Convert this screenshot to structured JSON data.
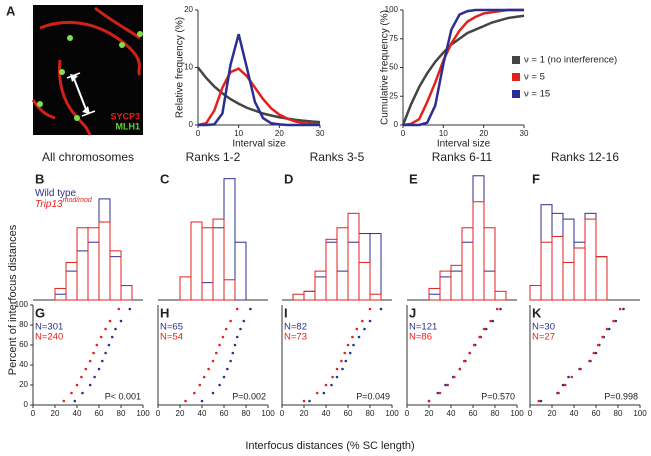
{
  "figure": {
    "image_panel": {
      "letter": "A",
      "label_red": "SYCP3",
      "label_green": "MLH1"
    },
    "y_axis_label": "Percent of interfocus distances",
    "x_axis_label": "Interfocus distances (% SC length)"
  },
  "chart_data": [
    {
      "type": "line",
      "ylabel": "Relative frequency (%)",
      "xlabel": "Interval size",
      "x": [
        0,
        2,
        4,
        6,
        8,
        10,
        12,
        14,
        16,
        18,
        20,
        22,
        24,
        26,
        28,
        30
      ],
      "xlim": [
        0,
        30
      ],
      "ylim": [
        0,
        20
      ],
      "xticks": [
        0,
        10,
        20,
        30
      ],
      "yticks": [
        0,
        10,
        20
      ],
      "series": [
        {
          "color": "#444444",
          "values": [
            10,
            8.2,
            6.7,
            5.5,
            4.5,
            3.7,
            3.0,
            2.5,
            2.0,
            1.65,
            1.35,
            1.1,
            0.9,
            0.74,
            0.6,
            0.5
          ]
        },
        {
          "color": "#e3211c",
          "values": [
            0,
            0.3,
            2.5,
            6.5,
            9.2,
            9.8,
            8.5,
            6.5,
            4.5,
            2.9,
            1.8,
            1.1,
            0.6,
            0.3,
            0.2,
            0.1
          ]
        },
        {
          "color": "#2b2f90",
          "values": [
            0,
            0,
            0.1,
            2,
            10.5,
            15.8,
            10,
            4,
            1.2,
            0.3,
            0.1,
            0,
            0,
            0,
            0,
            0
          ]
        }
      ]
    },
    {
      "type": "line",
      "ylabel": "Cumulative frequency (%)",
      "xlabel": "Interval size",
      "x": [
        0,
        2,
        4,
        6,
        8,
        10,
        12,
        14,
        16,
        18,
        20,
        22,
        24,
        26,
        28,
        30
      ],
      "xlim": [
        0,
        30
      ],
      "ylim": [
        0,
        100
      ],
      "xticks": [
        0,
        10,
        20,
        30
      ],
      "yticks": [
        0,
        25,
        50,
        75,
        100
      ],
      "series": [
        {
          "name": "ν = 1 (no interference)",
          "color": "#444444",
          "values": [
            0,
            18,
            33,
            45,
            55,
            63,
            70,
            75,
            80,
            83,
            86,
            89,
            91,
            93,
            94,
            95
          ]
        },
        {
          "name": "ν = 5",
          "color": "#e3211c",
          "values": [
            0,
            1,
            5,
            20,
            37,
            56,
            71,
            82,
            90,
            94,
            97,
            98,
            99,
            100,
            100,
            100
          ]
        },
        {
          "name": "ν = 15",
          "color": "#2b2f90",
          "values": [
            0,
            0,
            0,
            2,
            17,
            53,
            83,
            96,
            99,
            100,
            100,
            100,
            100,
            100,
            100,
            100
          ]
        }
      ]
    },
    {
      "type": "histogram",
      "letter": "B",
      "title": "All chromosomes",
      "xlim": [
        0,
        100
      ],
      "ylim": [
        0,
        45
      ],
      "bins": [
        0,
        10,
        20,
        30,
        40,
        50,
        60,
        70,
        80,
        90,
        100
      ],
      "series": [
        {
          "name": "Wild type",
          "color": "#2b2f90",
          "values": [
            0,
            0,
            2,
            10,
            17,
            20,
            35,
            15,
            5,
            0
          ]
        },
        {
          "name": "Trip13",
          "name_superscript": "mod/mod",
          "color": "#e3211c",
          "values": [
            0,
            0,
            4,
            13,
            25,
            25,
            27,
            17,
            5,
            0
          ]
        }
      ]
    },
    {
      "type": "histogram",
      "letter": "C",
      "title": "Ranks 1-2",
      "xlim": [
        0,
        100
      ],
      "ylim": [
        0,
        45
      ],
      "bins": [
        0,
        10,
        20,
        30,
        40,
        50,
        60,
        70,
        80,
        90,
        100
      ],
      "series": [
        {
          "color": "#2b2f90",
          "values": [
            0,
            0,
            0,
            0,
            6,
            25,
            42,
            20,
            0,
            0
          ]
        },
        {
          "color": "#e3211c",
          "values": [
            0,
            0,
            8,
            27,
            25,
            28,
            7,
            0,
            0,
            0
          ]
        }
      ]
    },
    {
      "type": "histogram",
      "letter": "D",
      "title": "Ranks 3-5",
      "xlim": [
        0,
        100
      ],
      "ylim": [
        0,
        45
      ],
      "bins": [
        0,
        10,
        20,
        30,
        40,
        50,
        60,
        70,
        80,
        90,
        100
      ],
      "series": [
        {
          "color": "#2b2f90",
          "values": [
            0,
            0,
            3,
            8,
            20,
            10,
            20,
            23,
            23,
            0
          ]
        },
        {
          "color": "#e3211c",
          "values": [
            0,
            2,
            3,
            10,
            21,
            25,
            30,
            13,
            2,
            0
          ]
        }
      ]
    },
    {
      "type": "histogram",
      "letter": "E",
      "title": "Ranks 6-11",
      "xlim": [
        0,
        100
      ],
      "ylim": [
        0,
        45
      ],
      "bins": [
        0,
        10,
        20,
        30,
        40,
        50,
        60,
        70,
        80,
        90,
        100
      ],
      "series": [
        {
          "color": "#2b2f90",
          "values": [
            0,
            0,
            2,
            8,
            10,
            20,
            43,
            10,
            0,
            0
          ]
        },
        {
          "color": "#e3211c",
          "values": [
            0,
            0,
            4,
            10,
            12,
            25,
            34,
            25,
            3,
            0
          ]
        }
      ]
    },
    {
      "type": "histogram",
      "letter": "F",
      "title": "Ranks 12-16",
      "xlim": [
        0,
        100
      ],
      "ylim": [
        0,
        45
      ],
      "bins": [
        0,
        10,
        20,
        30,
        40,
        50,
        60,
        70,
        80,
        90,
        100
      ],
      "series": [
        {
          "color": "#2b2f90",
          "values": [
            0,
            33,
            30,
            28,
            20,
            30,
            15,
            0,
            0,
            0
          ]
        },
        {
          "color": "#e3211c",
          "values": [
            5,
            20,
            22,
            13,
            18,
            28,
            15,
            0,
            0,
            0
          ]
        }
      ]
    },
    {
      "type": "scatter",
      "letter": "G",
      "p_label": "P< 0.001",
      "xlim": [
        0,
        100
      ],
      "ylim": [
        0,
        100
      ],
      "xticks": [
        0,
        20,
        40,
        60,
        80,
        100
      ],
      "yticks": [
        0,
        20,
        40,
        60,
        80,
        100
      ],
      "y": [
        4,
        12,
        20,
        28,
        36,
        44,
        52,
        60,
        68,
        76,
        84,
        96
      ],
      "series": [
        {
          "label": "N=301",
          "color": "#2b2f90",
          "x": [
            38,
            45,
            52,
            56,
            60,
            63,
            66,
            69,
            72,
            75,
            80,
            88
          ]
        },
        {
          "label": "N=240",
          "color": "#e3211c",
          "x": [
            28,
            35,
            40,
            44,
            48,
            52,
            55,
            58,
            62,
            66,
            70,
            78
          ]
        }
      ]
    },
    {
      "type": "scatter",
      "letter": "H",
      "p_label": "P=0.002",
      "xlim": [
        0,
        100
      ],
      "ylim": [
        0,
        100
      ],
      "xticks": [
        0,
        20,
        40,
        60,
        80,
        100
      ],
      "y": [
        4,
        12,
        20,
        28,
        36,
        44,
        52,
        60,
        68,
        76,
        84,
        96
      ],
      "series": [
        {
          "label": "N=65",
          "color": "#2b2f90",
          "x": [
            40,
            50,
            56,
            60,
            63,
            66,
            68,
            70,
            72,
            75,
            78,
            84
          ]
        },
        {
          "label": "N=54",
          "color": "#e3211c",
          "x": [
            25,
            33,
            38,
            42,
            46,
            50,
            53,
            56,
            59,
            62,
            66,
            72
          ]
        }
      ]
    },
    {
      "type": "scatter",
      "letter": "I",
      "p_label": "P=0.049",
      "xlim": [
        0,
        100
      ],
      "ylim": [
        0,
        100
      ],
      "xticks": [
        0,
        20,
        40,
        60,
        80,
        100
      ],
      "y": [
        4,
        12,
        20,
        28,
        36,
        44,
        52,
        60,
        68,
        76,
        84,
        96
      ],
      "series": [
        {
          "label": "N=82",
          "color": "#2b2f90",
          "x": [
            25,
            38,
            45,
            50,
            55,
            58,
            62,
            65,
            70,
            75,
            80,
            90
          ]
        },
        {
          "label": "N=73",
          "color": "#e3211c",
          "x": [
            20,
            32,
            40,
            46,
            50,
            54,
            57,
            60,
            64,
            68,
            73,
            80
          ]
        }
      ]
    },
    {
      "type": "scatter",
      "letter": "J",
      "p_label": "P=0.570",
      "xlim": [
        0,
        100
      ],
      "ylim": [
        0,
        100
      ],
      "xticks": [
        0,
        20,
        40,
        60,
        80,
        100
      ],
      "y": [
        4,
        12,
        20,
        28,
        36,
        44,
        52,
        60,
        68,
        76,
        84,
        96
      ],
      "series": [
        {
          "label": "N=121",
          "color": "#2b2f90",
          "x": [
            20,
            28,
            35,
            42,
            48,
            53,
            57,
            62,
            67,
            72,
            78,
            85
          ]
        },
        {
          "label": "N=86",
          "color": "#e3211c",
          "x": [
            20,
            30,
            37,
            43,
            48,
            52,
            57,
            61,
            66,
            70,
            76,
            82
          ]
        }
      ]
    },
    {
      "type": "scatter",
      "letter": "K",
      "p_label": "P=0.998",
      "xlim": [
        0,
        100
      ],
      "ylim": [
        0,
        100
      ],
      "xticks": [
        0,
        20,
        40,
        60,
        80,
        100
      ],
      "y": [
        4,
        12,
        20,
        28,
        36,
        44,
        52,
        60,
        68,
        76,
        84,
        96
      ],
      "series": [
        {
          "label": "N=30",
          "color": "#2b2f90",
          "x": [
            10,
            25,
            30,
            35,
            45,
            55,
            60,
            63,
            67,
            72,
            78,
            85
          ]
        },
        {
          "label": "N=27",
          "color": "#e3211c",
          "x": [
            8,
            26,
            32,
            38,
            46,
            54,
            58,
            62,
            66,
            70,
            76,
            82
          ]
        }
      ]
    }
  ]
}
